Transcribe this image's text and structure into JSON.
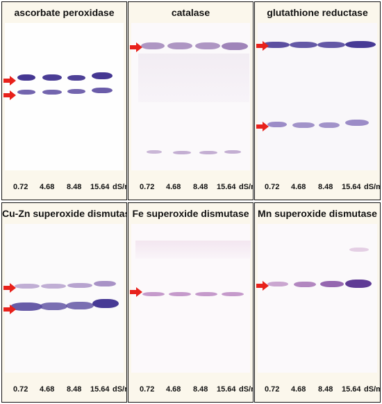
{
  "panels": [
    {
      "title": "ascorbate peroxidase",
      "lanes": [
        "0.72",
        "4.68",
        "8.48",
        "15.64",
        "dS/m"
      ]
    },
    {
      "title": "catalase",
      "lanes": [
        "0.72",
        "4.68",
        "8.48",
        "15.64",
        "dS/m"
      ]
    },
    {
      "title": "glutathione reductase",
      "lanes": [
        "0.72",
        "4.68",
        "8.48",
        "15.64",
        "dS/m"
      ]
    },
    {
      "title": "Cu-Zn superoxide dismutase",
      "lanes": [
        "0.72",
        "4.68",
        "8.48",
        "15.64",
        "dS/m"
      ]
    },
    {
      "title": "Fe superoxide dismutase",
      "lanes": [
        "0.72",
        "4.68",
        "8.48",
        "15.64",
        "dS/m"
      ]
    },
    {
      "title": "Mn superoxide dismutase",
      "lanes": [
        "0.72",
        "4.68",
        "8.48",
        "15.64",
        "dS/m"
      ]
    }
  ],
  "colors": {
    "arrow": "#e8211b",
    "band_dark": "#3d2f8f",
    "band_light": "#b79ac6",
    "panel_border": "#111111"
  }
}
